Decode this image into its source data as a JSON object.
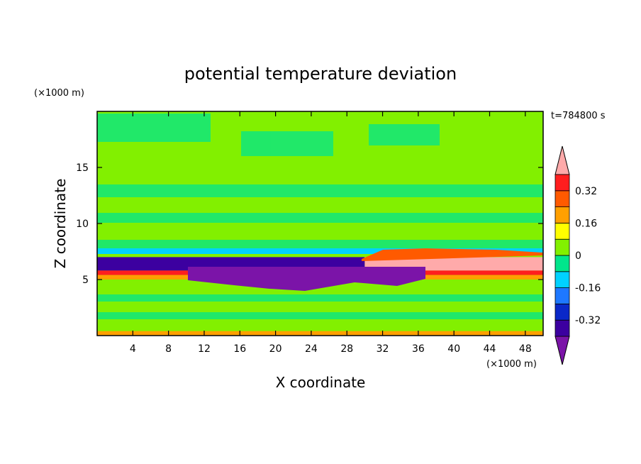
{
  "chart_data": {
    "type": "heatmap",
    "title": "potential temperature deviation",
    "xlabel": "X coordinate",
    "ylabel": "Z coordinate",
    "x_unit": "(×1000 m)",
    "y_unit": "(×1000 m)",
    "time_label": "t=784800 s",
    "xlim": [
      0,
      50
    ],
    "ylim": [
      0,
      20
    ],
    "x_ticks": [
      4,
      8,
      12,
      16,
      20,
      24,
      28,
      32,
      36,
      40,
      44,
      48
    ],
    "y_ticks": [
      5,
      10,
      15
    ],
    "colorbar": {
      "levels": [
        -0.4,
        -0.32,
        -0.24,
        -0.16,
        -0.08,
        0,
        0.08,
        0.16,
        0.24,
        0.32,
        0.4
      ],
      "colors": [
        "#7b14a8",
        "#3c00a0",
        "#0a28c8",
        "#1e78ff",
        "#00d2ff",
        "#00e68c",
        "#82f000",
        "#ffff00",
        "#ffa000",
        "#ff5a00",
        "#ff1e1e",
        "#ffaaaa"
      ],
      "tick_labels": [
        "0.32",
        "0.16",
        "0",
        "-0.16",
        "-0.32"
      ],
      "tick_values": [
        0.32,
        0.16,
        0,
        -0.16,
        -0.32
      ],
      "extend": "both"
    },
    "regions": [
      {
        "x": [
          0,
          50
        ],
        "z": [
          12,
          20
        ],
        "value": 0.04
      },
      {
        "x": [
          0,
          50
        ],
        "z": [
          6.8,
          12
        ],
        "value": 0.0
      },
      {
        "x": [
          0,
          30
        ],
        "z": [
          5.8,
          7.0
        ],
        "value": -0.36
      },
      {
        "x": [
          30,
          50
        ],
        "z": [
          5.8,
          7.0
        ],
        "value": 0.45
      },
      {
        "x": [
          0,
          50
        ],
        "z": [
          5.4,
          5.8
        ],
        "value": 0.36
      },
      {
        "x": [
          0,
          50
        ],
        "z": [
          5.0,
          5.4
        ],
        "value": 0.2
      },
      {
        "x": [
          0,
          50
        ],
        "z": [
          4.0,
          5.0
        ],
        "value": 0.04
      },
      {
        "x": [
          0,
          50
        ],
        "z": [
          0.4,
          4.0
        ],
        "value": 0.0
      },
      {
        "x": [
          0,
          50
        ],
        "z": [
          0,
          0.4
        ],
        "value": 0.2
      }
    ]
  }
}
